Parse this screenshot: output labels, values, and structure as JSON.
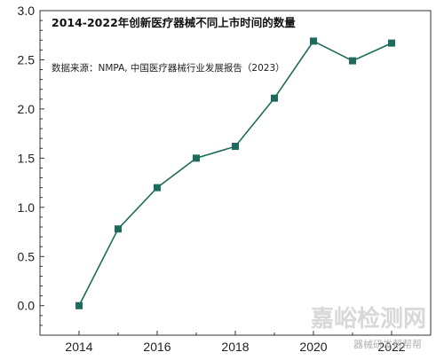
{
  "chart_data": {
    "type": "line",
    "title": "2014-2022年创新医疗器械不同上市时间的数量",
    "subtitle": "数据来源：NMPA, 中国医疗器械行业发展报告（2023）",
    "xlabel": "",
    "ylabel": "",
    "x": [
      2014,
      2015,
      2016,
      2017,
      2018,
      2019,
      2020,
      2021,
      2022
    ],
    "values": [
      0.0,
      0.78,
      1.2,
      1.5,
      1.62,
      2.11,
      2.69,
      2.49,
      2.67
    ],
    "xlim": [
      2013,
      2023
    ],
    "ylim": [
      -0.3,
      3.0
    ],
    "x_ticks": [
      2014,
      2016,
      2018,
      2020,
      2022
    ],
    "x_tick_labels": [
      "2014",
      "2016",
      "2018",
      "2020",
      "2022"
    ],
    "y_ticks": [
      0.0,
      0.5,
      1.0,
      1.5,
      2.0,
      2.5,
      3.0
    ],
    "y_tick_labels": [
      "0.0",
      "0.5",
      "1.0",
      "1.5",
      "2.0",
      "2.5",
      "3.0"
    ],
    "grid": false,
    "line_color": "#1c6b5c",
    "marker_color": "#1c6b5c",
    "marker": "square"
  },
  "watermark": {
    "main": "嘉峪检测网",
    "sub": "器械研发帮帮帮"
  }
}
